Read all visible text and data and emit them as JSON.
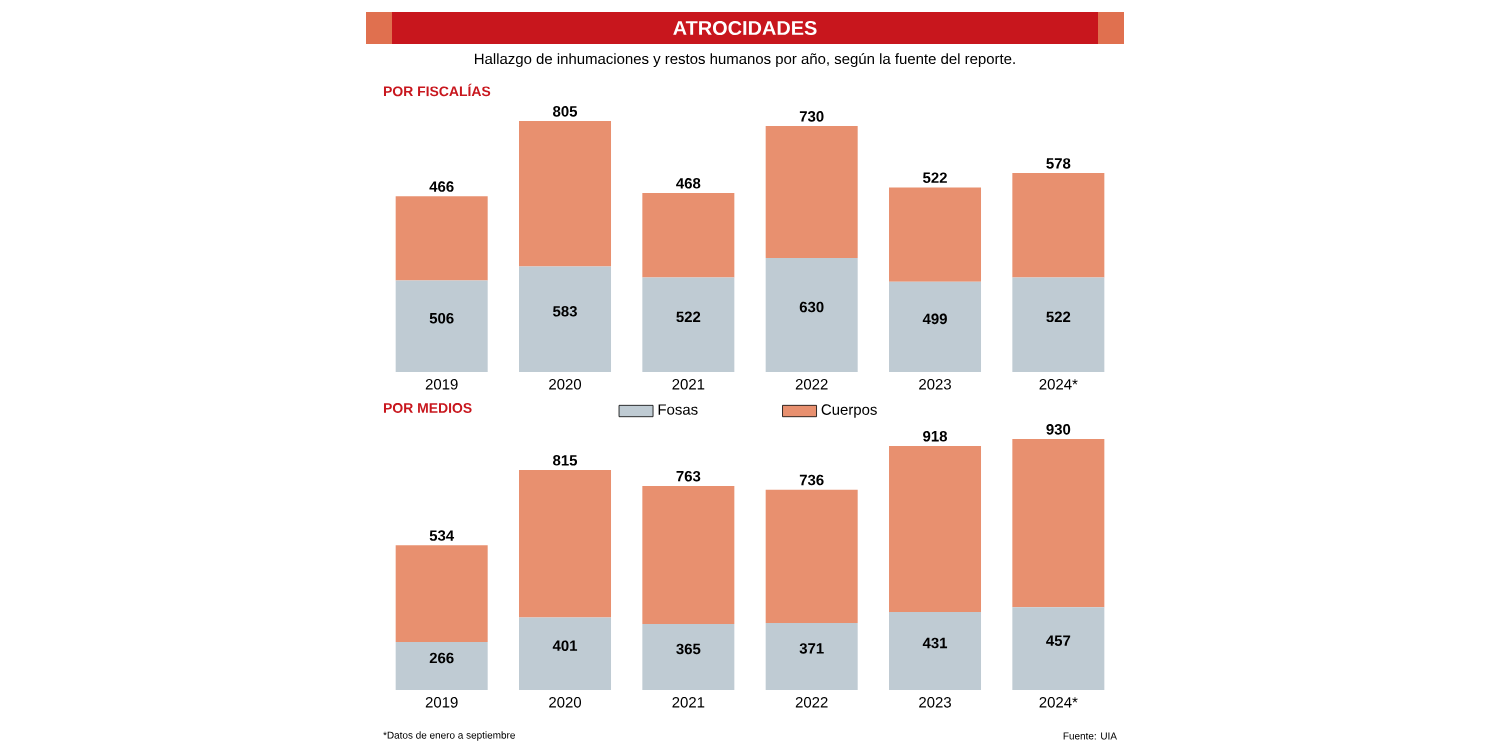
{
  "chart_data": [
    {
      "type": "other",
      "title": "ATROCIDADES",
      "subtitle": "Hallazgo de inhumaciones y restos humanos por año, según la fuente del reporte."
    },
    {
      "type": "bar",
      "title": "POR FISCALÍAS",
      "stacked": true,
      "categories": [
        "2019",
        "2020",
        "2021",
        "2022",
        "2023",
        "2024*"
      ],
      "data_labels": true,
      "legend": "bottom",
      "series": [
        {
          "name": "Fosas",
          "color": "#bfcbd3",
          "values": [
            506,
            583,
            522,
            630,
            499,
            522
          ]
        },
        {
          "name": "Cuerpos",
          "color": "#e8906f",
          "values": [
            466,
            805,
            468,
            730,
            522,
            578
          ]
        }
      ]
    },
    {
      "type": "bar",
      "title": "POR MEDIOS",
      "stacked": true,
      "categories": [
        "2019",
        "2020",
        "2021",
        "2022",
        "2023",
        "2024*"
      ],
      "data_labels": true,
      "series": [
        {
          "color": "#bfcbd3",
          "values": [
            266,
            401,
            365,
            371,
            431,
            457
          ]
        },
        {
          "color": "#e8906f",
          "values": [
            534,
            815,
            763,
            736,
            918,
            930
          ]
        }
      ],
      "annotations": [
        "*Datos de enero a septiembre",
        "Fuente: UIA"
      ]
    }
  ]
}
